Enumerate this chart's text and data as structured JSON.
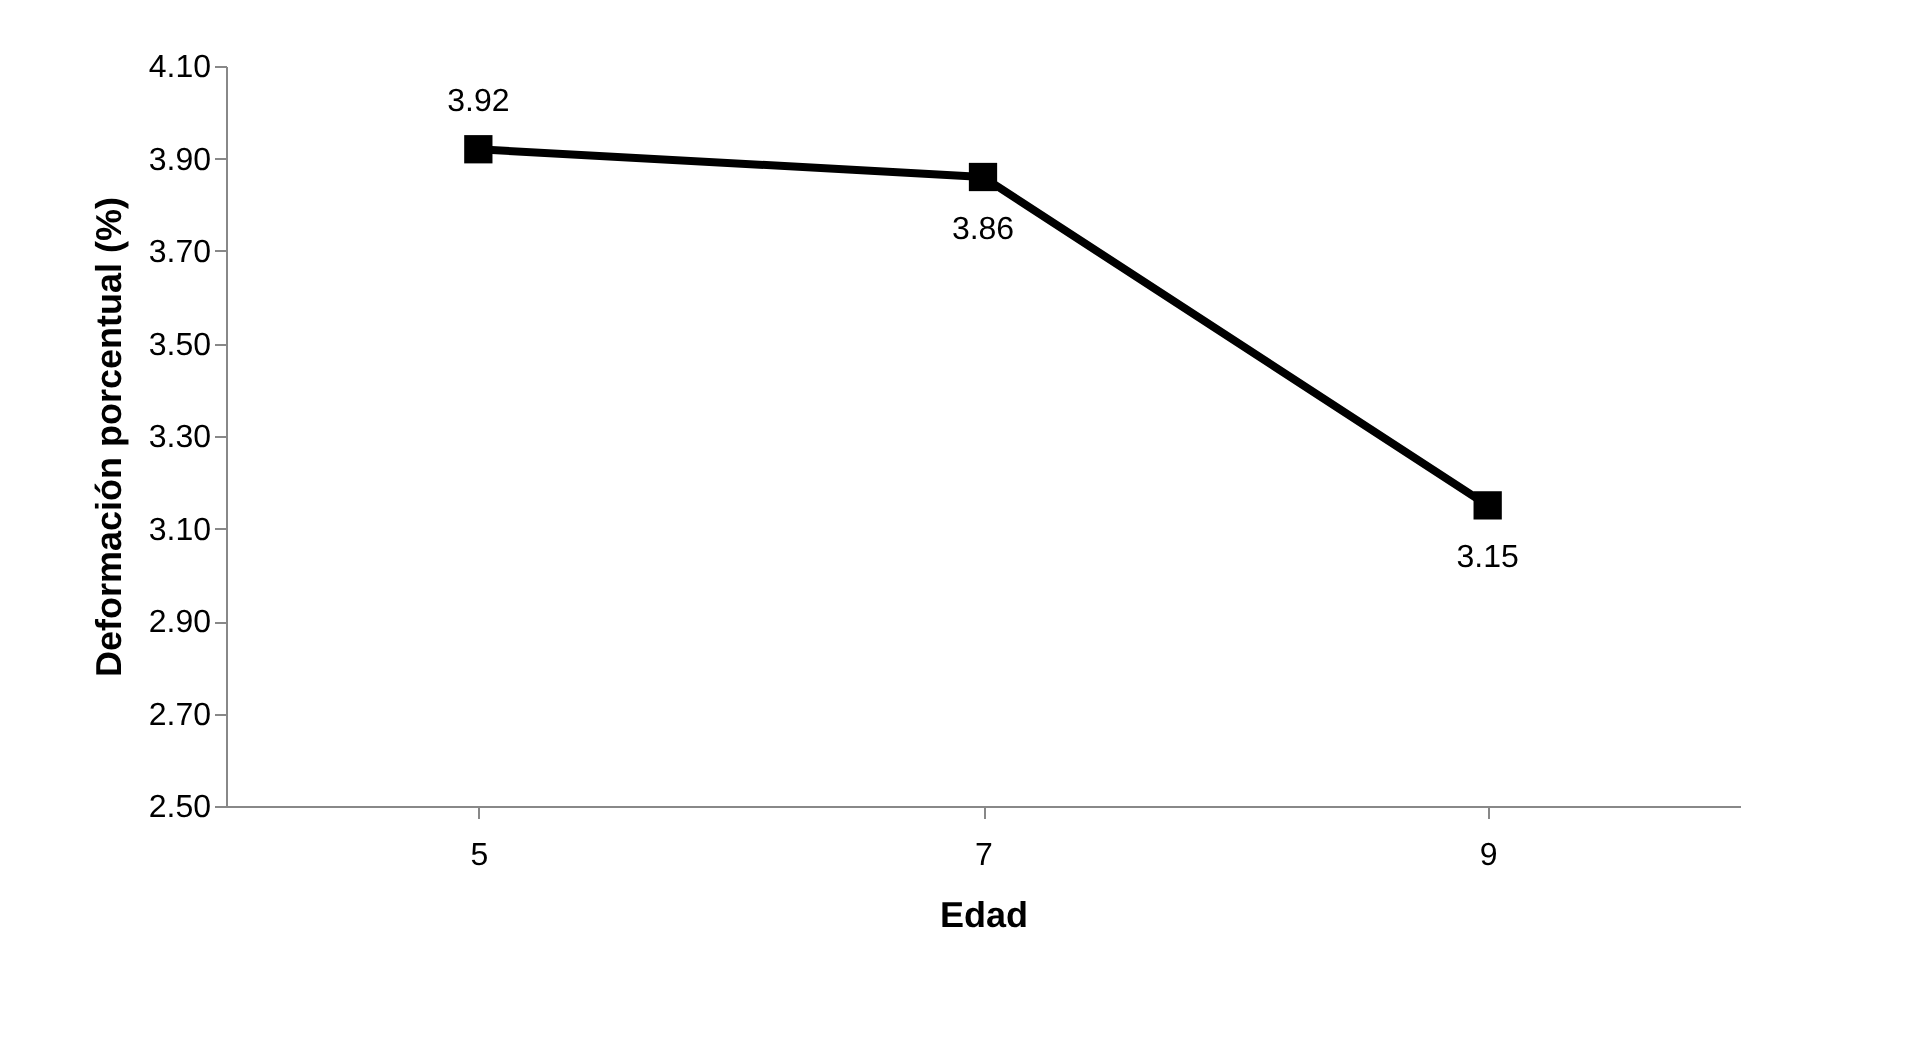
{
  "chart_data": {
    "type": "line",
    "xlabel": "Edad",
    "ylabel": "Deformación porcentual (%)",
    "categories": [
      "5",
      "7",
      "9"
    ],
    "series": [
      {
        "color": "#000000",
        "values": [
          3.92,
          3.86,
          3.15
        ]
      }
    ],
    "ylim": [
      2.5,
      4.1
    ],
    "yticks": [
      {
        "value": 2.5,
        "label": "2.50"
      },
      {
        "value": 2.7,
        "label": "2.70"
      },
      {
        "value": 2.9,
        "label": "2.90"
      },
      {
        "value": 3.1,
        "label": "3.10"
      },
      {
        "value": 3.3,
        "label": "3.30"
      },
      {
        "value": 3.5,
        "label": "3.50"
      },
      {
        "value": 3.7,
        "label": "3.70"
      },
      {
        "value": 3.9,
        "label": "3.90"
      },
      {
        "value": 4.1,
        "label": "4.10"
      }
    ],
    "data_labels": true,
    "marker": "square",
    "line_style": "solid",
    "grid": false
  }
}
